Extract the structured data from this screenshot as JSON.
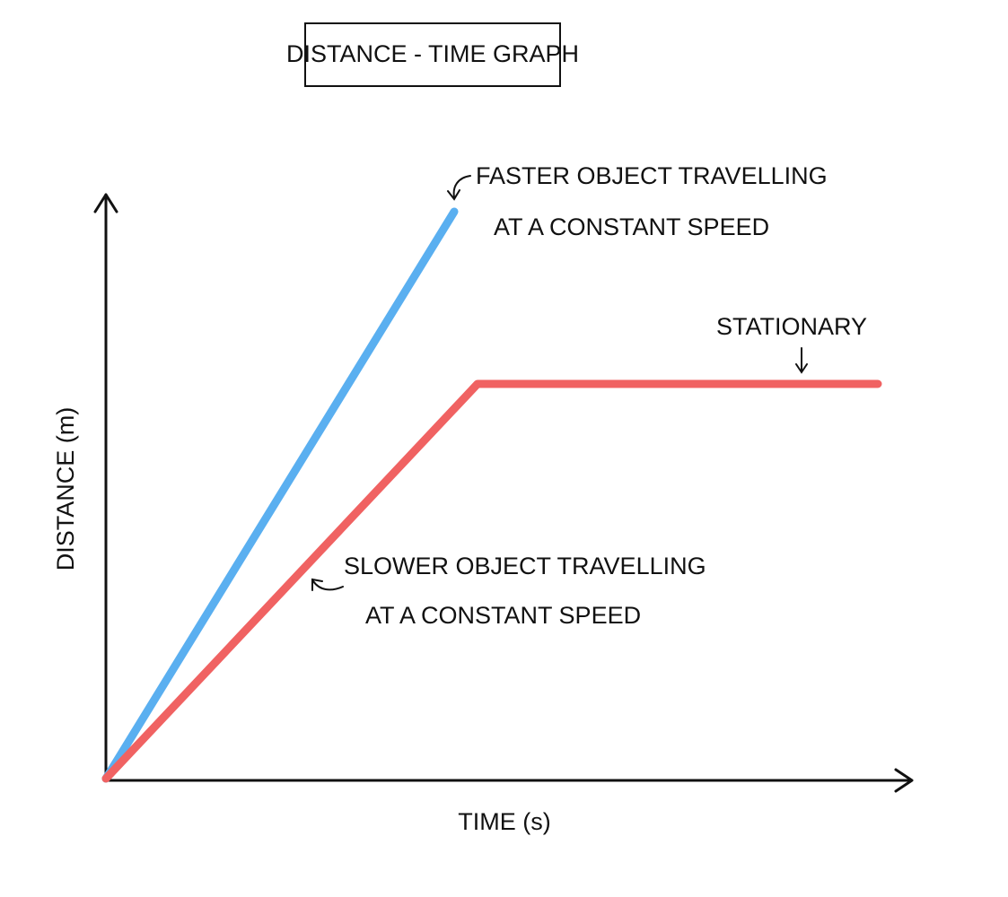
{
  "title": "DISTANCE - TIME GRAPH",
  "y_axis_label": "DISTANCE (m)",
  "x_axis_label": "TIME (s)",
  "annotations": {
    "faster": [
      "FASTER OBJECT TRAVELLING",
      "AT A CONSTANT SPEED"
    ],
    "slower": [
      "SLOWER OBJECT TRAVELLING",
      "AT A CONSTANT SPEED"
    ],
    "stationary": "STATIONARY"
  }
}
